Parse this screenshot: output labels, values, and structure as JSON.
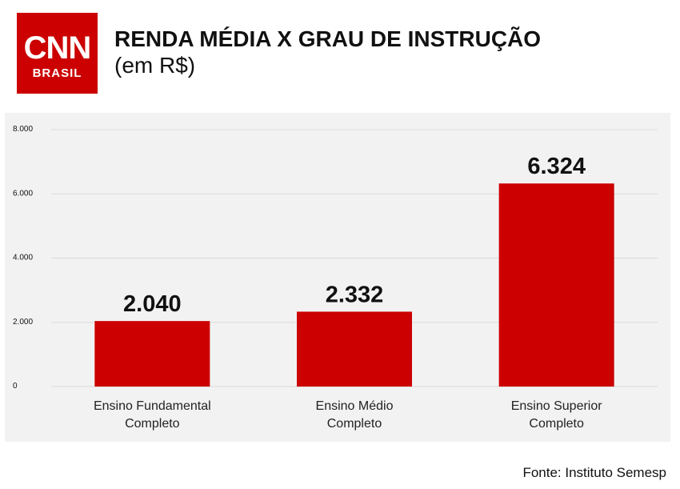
{
  "logo": {
    "main": "CNN",
    "sub": "BRASIL"
  },
  "header": {
    "title": "RENDA MÉDIA X GRAU DE INSTRUÇÃO",
    "subtitle": "(em R$)"
  },
  "source": "Fonte: Instituto Semesp",
  "colors": {
    "bar": "#cc0000",
    "brand": "#cc0000",
    "panel": "#f2f2f2",
    "grid": "#d9d9d9"
  },
  "chart_data": {
    "type": "bar",
    "categories": [
      [
        "Ensino Fundamental",
        "Completo"
      ],
      [
        "Ensino Médio",
        "Completo"
      ],
      [
        "Ensino Superior",
        "Completo"
      ]
    ],
    "values": [
      2040,
      2332,
      6324
    ],
    "value_labels": [
      "2.040",
      "2.332",
      "6.324"
    ],
    "title": "RENDA MÉDIA X GRAU DE INSTRUÇÃO",
    "subtitle": "(em R$)",
    "ylim": [
      0,
      8000
    ],
    "yticks": [
      0,
      2000,
      4000,
      6000,
      8000
    ],
    "ytick_labels": [
      "0",
      "2.000",
      "4.000",
      "6.000",
      "8.000"
    ],
    "grid": true,
    "legend": "none"
  }
}
